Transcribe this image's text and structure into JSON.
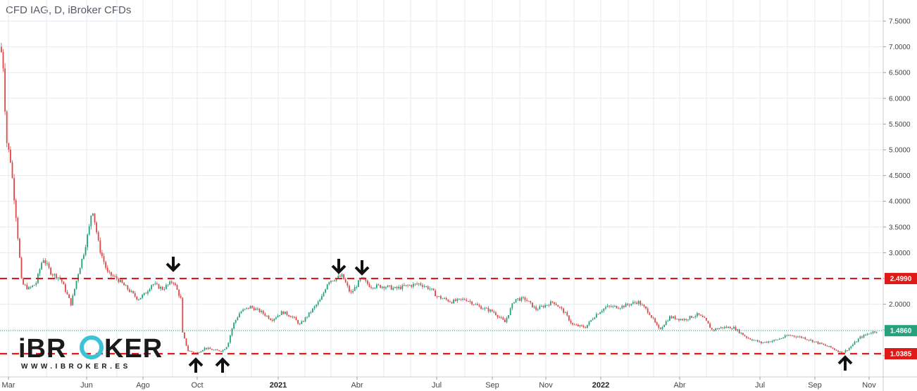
{
  "title": "CFD IAG, D, iBroker CFDs",
  "colors": {
    "up_candle": "#26a17b",
    "down_candle": "#e04848",
    "level_line": "#e01818",
    "current_price_line": "#26a17b",
    "grid": "#e6ebf0",
    "arrow": "#111111",
    "logo_dark": "#1a1a1a",
    "logo_accent": "#3ec2d6"
  },
  "logo": {
    "text_left": "iBR",
    "text_accent": "O",
    "text_right": "KER",
    "url_text": "WWW.IBROKER.ES",
    "icons": [
      "logo-ring-icon"
    ]
  },
  "icons": [
    "arrow-down-icon",
    "arrow-up-icon"
  ],
  "chart_data": {
    "type": "candlestick",
    "title": "CFD IAG, D, iBroker CFDs",
    "y_axis": {
      "ylim": [
        0.96,
        7.8
      ],
      "ticks": [
        "7.5000",
        "7.0000",
        "6.5000",
        "6.0000",
        "5.5000",
        "5.0000",
        "4.5000",
        "4.0000",
        "3.5000",
        "3.0000",
        "2.5000",
        "2.0000",
        "1.5000",
        "1.0000"
      ],
      "position": "right"
    },
    "x_axis": {
      "labels": [
        {
          "text": "Mar",
          "bold": false
        },
        {
          "text": "Jun",
          "bold": false
        },
        {
          "text": "Ago",
          "bold": false
        },
        {
          "text": "Oct",
          "bold": false
        },
        {
          "text": "2021",
          "bold": true
        },
        {
          "text": "Abr",
          "bold": false
        },
        {
          "text": "Jul",
          "bold": false
        },
        {
          "text": "Sep",
          "bold": false
        },
        {
          "text": "Nov",
          "bold": false
        },
        {
          "text": "2022",
          "bold": true
        },
        {
          "text": "Abr",
          "bold": false
        },
        {
          "text": "Jul",
          "bold": false
        },
        {
          "text": "Sep",
          "bold": false
        },
        {
          "text": "Nov",
          "bold": false
        }
      ]
    },
    "grid": true,
    "horizontal_levels": [
      {
        "value": 2.499,
        "label": "2.4990",
        "style": "dashed"
      },
      {
        "value": 1.0385,
        "label": "1.0385",
        "style": "dashed"
      },
      {
        "value": 1.486,
        "label": "1.4860",
        "style": "dotted-current"
      }
    ],
    "price_path": [
      [
        0,
        7.0
      ],
      [
        4,
        6.6
      ],
      [
        8,
        5.2
      ],
      [
        14,
        4.8
      ],
      [
        22,
        3.7
      ],
      [
        30,
        2.4
      ],
      [
        40,
        2.3
      ],
      [
        50,
        2.4
      ],
      [
        60,
        2.9
      ],
      [
        72,
        2.6
      ],
      [
        85,
        2.5
      ],
      [
        100,
        2.0
      ],
      [
        110,
        2.6
      ],
      [
        118,
        3.0
      ],
      [
        126,
        3.5
      ],
      [
        130,
        3.9
      ],
      [
        140,
        3.1
      ],
      [
        152,
        2.6
      ],
      [
        165,
        2.5
      ],
      [
        180,
        2.3
      ],
      [
        195,
        2.1
      ],
      [
        205,
        2.2
      ],
      [
        215,
        2.4
      ],
      [
        230,
        2.3
      ],
      [
        245,
        2.45
      ],
      [
        256,
        2.1
      ],
      [
        258,
        1.45
      ],
      [
        266,
        1.1
      ],
      [
        278,
        1.05
      ],
      [
        290,
        1.15
      ],
      [
        305,
        1.1
      ],
      [
        315,
        1.1
      ],
      [
        322,
        1.2
      ],
      [
        330,
        1.6
      ],
      [
        340,
        1.85
      ],
      [
        355,
        1.95
      ],
      [
        370,
        1.85
      ],
      [
        385,
        1.7
      ],
      [
        400,
        1.85
      ],
      [
        415,
        1.75
      ],
      [
        425,
        1.6
      ],
      [
        440,
        1.85
      ],
      [
        455,
        2.1
      ],
      [
        465,
        2.45
      ],
      [
        475,
        2.5
      ],
      [
        485,
        2.55
      ],
      [
        497,
        2.2
      ],
      [
        512,
        2.5
      ],
      [
        525,
        2.35
      ],
      [
        545,
        2.35
      ],
      [
        560,
        2.3
      ],
      [
        575,
        2.35
      ],
      [
        595,
        2.4
      ],
      [
        610,
        2.3
      ],
      [
        620,
        2.15
      ],
      [
        640,
        2.05
      ],
      [
        660,
        2.1
      ],
      [
        680,
        1.95
      ],
      [
        700,
        1.85
      ],
      [
        716,
        1.65
      ],
      [
        730,
        2.1
      ],
      [
        745,
        2.1
      ],
      [
        760,
        1.9
      ],
      [
        785,
        2.05
      ],
      [
        800,
        1.85
      ],
      [
        812,
        1.6
      ],
      [
        830,
        1.55
      ],
      [
        845,
        1.8
      ],
      [
        860,
        1.95
      ],
      [
        880,
        1.95
      ],
      [
        905,
        2.05
      ],
      [
        920,
        1.85
      ],
      [
        935,
        1.5
      ],
      [
        950,
        1.75
      ],
      [
        970,
        1.7
      ],
      [
        990,
        1.8
      ],
      [
        1000,
        1.7
      ],
      [
        1010,
        1.5
      ],
      [
        1025,
        1.55
      ],
      [
        1040,
        1.55
      ],
      [
        1060,
        1.35
      ],
      [
        1080,
        1.25
      ],
      [
        1100,
        1.3
      ],
      [
        1120,
        1.4
      ],
      [
        1140,
        1.35
      ],
      [
        1160,
        1.25
      ],
      [
        1180,
        1.15
      ],
      [
        1195,
        1.05
      ],
      [
        1205,
        1.15
      ],
      [
        1220,
        1.35
      ],
      [
        1235,
        1.45
      ],
      [
        1245,
        1.486
      ]
    ],
    "annotations": [
      {
        "type": "arrow-down",
        "date_label": "Ago",
        "price": 2.5
      },
      {
        "type": "arrow-up",
        "date_label": "Oct",
        "price": 1.0385
      },
      {
        "type": "arrow-up",
        "date_label": "Oct",
        "price": 1.05
      },
      {
        "type": "arrow-down",
        "date_label": "2021",
        "price": 2.499
      },
      {
        "type": "arrow-down",
        "date_label": "Abr",
        "price": 2.55
      },
      {
        "type": "arrow-up",
        "date_label": "Sep",
        "price": 1.0385
      }
    ]
  }
}
